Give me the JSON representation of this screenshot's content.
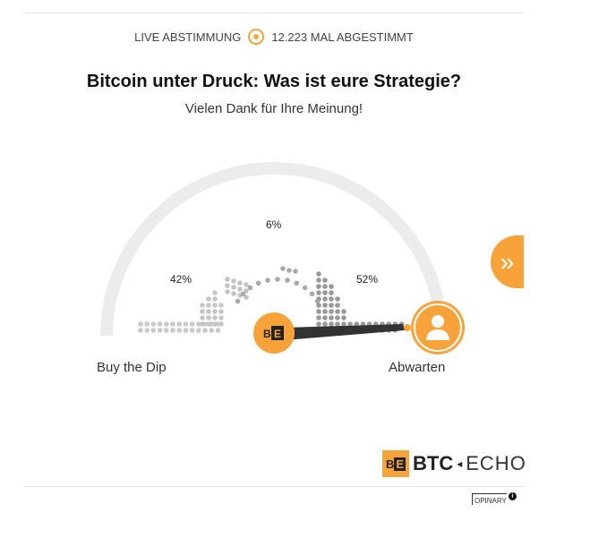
{
  "header": {
    "live_label": "LIVE ABSTIMMUNG",
    "votes_label": "12.223 MAL ABGESTIMMT"
  },
  "poll": {
    "question": "Bitcoin unter Druck: Was ist eure Strategie?",
    "thanks": "Vielen Dank für Ihre Meinung!",
    "options": [
      {
        "label": "Buy the Dip",
        "percent": "42%"
      },
      {
        "label": "",
        "percent": "6%"
      },
      {
        "label": "Abwarten",
        "percent": "52%"
      }
    ],
    "selected": "Abwarten"
  },
  "brand": {
    "logo_mark": "BE",
    "name_bold": "BTC",
    "name_light": "ECHO",
    "provider": "OPINARY"
  },
  "colors": {
    "accent": "#f7a339",
    "arc": "#ececec",
    "needle": "#333333"
  },
  "icons": {
    "next": "chevron-double-right",
    "avatar": "user-icon",
    "info": "info-icon"
  }
}
